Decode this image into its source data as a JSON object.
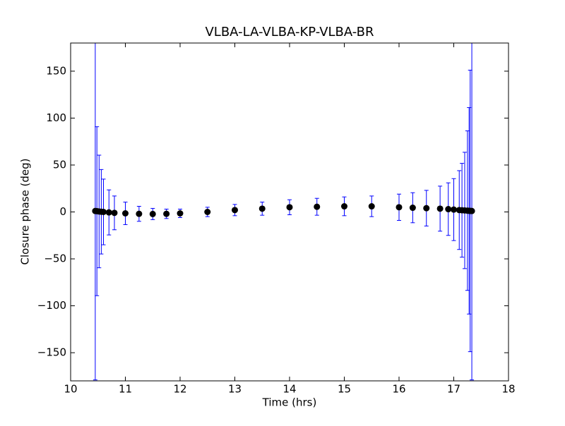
{
  "chart_data": {
    "type": "errorbar",
    "title": "VLBA-LA-VLBA-KP-VLBA-BR",
    "xlabel": "Time (hrs)",
    "ylabel": "Closure phase (deg)",
    "x": [
      10.45,
      10.48,
      10.52,
      10.56,
      10.6,
      10.7,
      10.8,
      11,
      11.25,
      11.5,
      11.75,
      12,
      12.5,
      13,
      13.5,
      14,
      14.5,
      15,
      15.5,
      16,
      16.25,
      16.5,
      16.75,
      16.9,
      17,
      17.1,
      17.15,
      17.2,
      17.25,
      17.28,
      17.3,
      17.33
    ],
    "values": [
      1,
      0.8,
      0.5,
      0.2,
      0,
      -0.5,
      -1,
      -1.5,
      -2,
      -2.2,
      -2,
      -1.5,
      0,
      2,
      3.5,
      5,
      5.5,
      6,
      6,
      5,
      4.5,
      4,
      3.5,
      3,
      2.5,
      2,
      1.8,
      1.6,
      1.4,
      1.2,
      1.1,
      1
    ],
    "errors": [
      180,
      90,
      60,
      45,
      35,
      24,
      18,
      12,
      8,
      6,
      5,
      4.5,
      5,
      6,
      7,
      8,
      9,
      10,
      11,
      14,
      16,
      19,
      24,
      28,
      33,
      42,
      50,
      62,
      85,
      110,
      150,
      180
    ],
    "color": "#000000",
    "ecolor": "#0000ff",
    "xlim": [
      10,
      18
    ],
    "xticks": [
      10,
      11,
      12,
      13,
      14,
      15,
      16,
      17,
      18
    ],
    "ylim": [
      -180,
      180
    ],
    "yticks": [
      {
        "value": -150,
        "label": "−150"
      },
      {
        "value": -100,
        "label": "−100"
      },
      {
        "value": -50,
        "label": "−50"
      },
      0,
      50,
      100,
      150
    ]
  }
}
